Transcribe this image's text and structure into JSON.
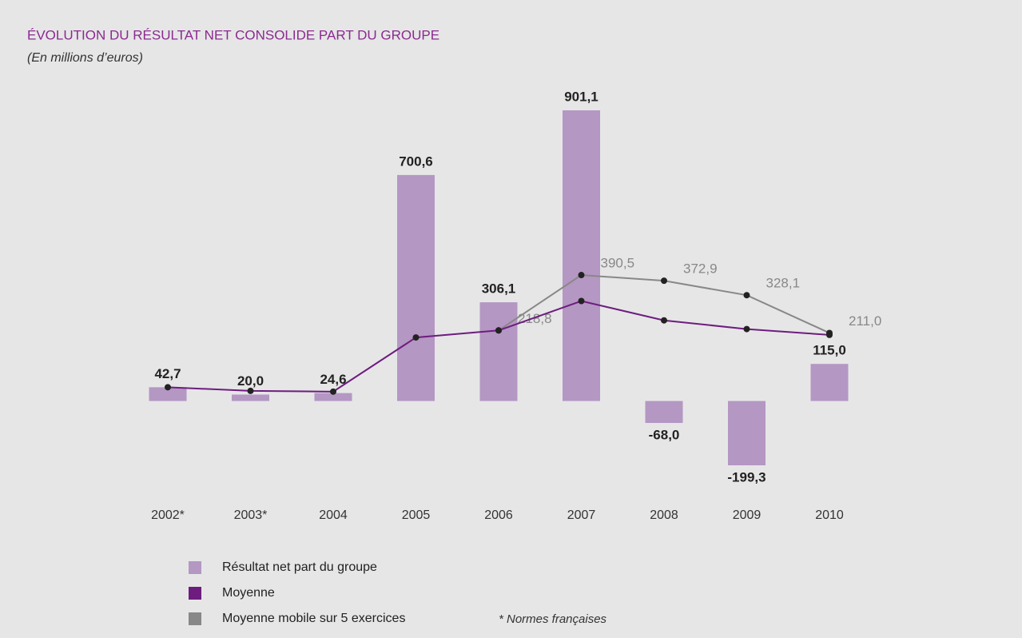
{
  "chart_data": {
    "type": "bar",
    "title": "ÉVOLUTION DU RÉSULTAT NET CONSOLIDE PART DU GROUPE",
    "subtitle": "(En millions d’euros)",
    "note": "* Normes françaises",
    "categories": [
      "2002*",
      "2003*",
      "2004",
      "2005",
      "2006",
      "2007",
      "2008",
      "2009",
      "2010"
    ],
    "series": [
      {
        "name": "Résultat net part du groupe",
        "type": "bar",
        "color": "#b497c3",
        "values": [
          42.7,
          20.0,
          24.6,
          700.6,
          306.1,
          901.1,
          -68.0,
          -199.3,
          115.0
        ],
        "value_labels": [
          "42,7",
          "20,0",
          "24,6",
          "700,6",
          "306,1",
          "901,1",
          "-68,0",
          "-199,3",
          "115,0"
        ]
      },
      {
        "name": "Moyenne",
        "type": "line",
        "color": "#6e1d7e",
        "values": [
          42.7,
          31.4,
          29.1,
          197,
          218.8,
          310,
          250,
          223,
          205
        ]
      },
      {
        "name": "Moyenne mobile sur 5 exercices",
        "type": "line",
        "color": "#888888",
        "values": [
          null,
          null,
          null,
          null,
          218.8,
          390.5,
          372.9,
          328.1,
          211.0
        ],
        "value_labels": [
          null,
          null,
          null,
          null,
          "218,8",
          "390,5",
          "372,9",
          "328,1",
          "211,0"
        ]
      }
    ]
  }
}
